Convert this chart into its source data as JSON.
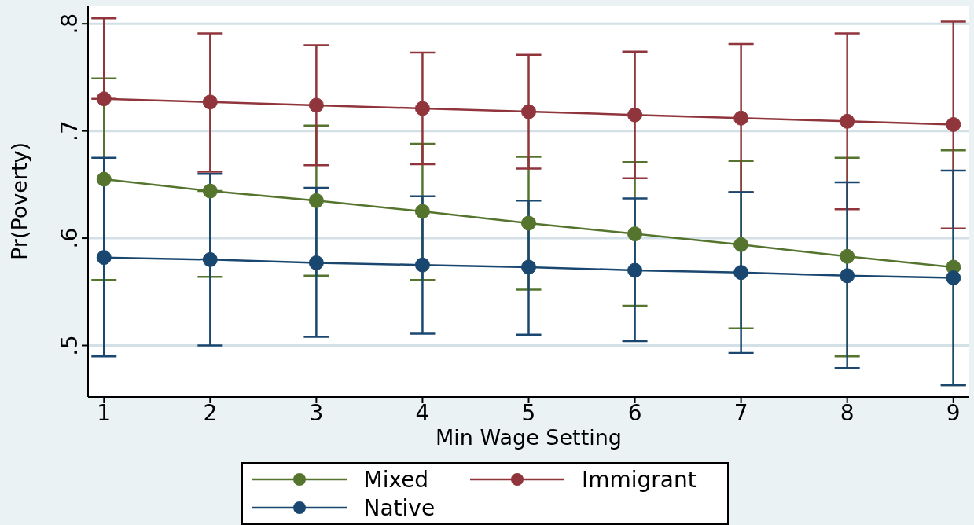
{
  "chart_data": {
    "type": "line",
    "xlabel": "Min Wage Setting",
    "ylabel": "Pr(Poverty)",
    "x": [
      1,
      2,
      3,
      4,
      5,
      6,
      7,
      8,
      9
    ],
    "xlim": [
      0.85,
      9.15
    ],
    "xticks": [
      1,
      2,
      3,
      4,
      5,
      6,
      7,
      8,
      9
    ],
    "ylim": [
      0.452,
      0.817
    ],
    "yticks": [
      {
        "value": 0.5,
        "label": ".5"
      },
      {
        "value": 0.6,
        "label": ".6"
      },
      {
        "value": 0.7,
        "label": ".7"
      },
      {
        "value": 0.8,
        "label": ".8"
      }
    ],
    "grid": "y",
    "legend": "bottom",
    "marker": "circle",
    "line_style": "solid",
    "series": [
      {
        "name": "Mixed",
        "color": "#55752f",
        "values": [
          0.655,
          0.644,
          0.635,
          0.625,
          0.614,
          0.604,
          0.594,
          0.583,
          0.573
        ],
        "errors": [
          [
            0.561,
            0.749
          ],
          [
            0.564,
            0.644
          ],
          [
            0.565,
            0.705
          ],
          [
            0.561,
            0.688
          ],
          [
            0.552,
            0.676
          ],
          [
            0.537,
            0.671
          ],
          [
            0.516,
            0.672
          ],
          [
            0.49,
            0.675
          ],
          [
            0.463,
            0.682
          ]
        ]
      },
      {
        "name": "Immigrant",
        "color": "#90353b",
        "values": [
          0.73,
          0.727,
          0.724,
          0.721,
          0.718,
          0.715,
          0.712,
          0.709,
          0.706
        ],
        "errors": [
          [
            0.73,
            0.805
          ],
          [
            0.662,
            0.791
          ],
          [
            0.668,
            0.78
          ],
          [
            0.669,
            0.773
          ],
          [
            0.665,
            0.771
          ],
          [
            0.656,
            0.774
          ],
          [
            0.643,
            0.781
          ],
          [
            0.627,
            0.791
          ],
          [
            0.609,
            0.802
          ]
        ]
      },
      {
        "name": "Native",
        "color": "#1a476f",
        "values": [
          0.582,
          0.58,
          0.577,
          0.575,
          0.573,
          0.57,
          0.568,
          0.565,
          0.563
        ],
        "errors": [
          [
            0.49,
            0.675
          ],
          [
            0.5,
            0.66
          ],
          [
            0.508,
            0.647
          ],
          [
            0.511,
            0.639
          ],
          [
            0.51,
            0.635
          ],
          [
            0.504,
            0.637
          ],
          [
            0.493,
            0.643
          ],
          [
            0.479,
            0.652
          ],
          [
            0.463,
            0.663
          ]
        ]
      }
    ]
  }
}
